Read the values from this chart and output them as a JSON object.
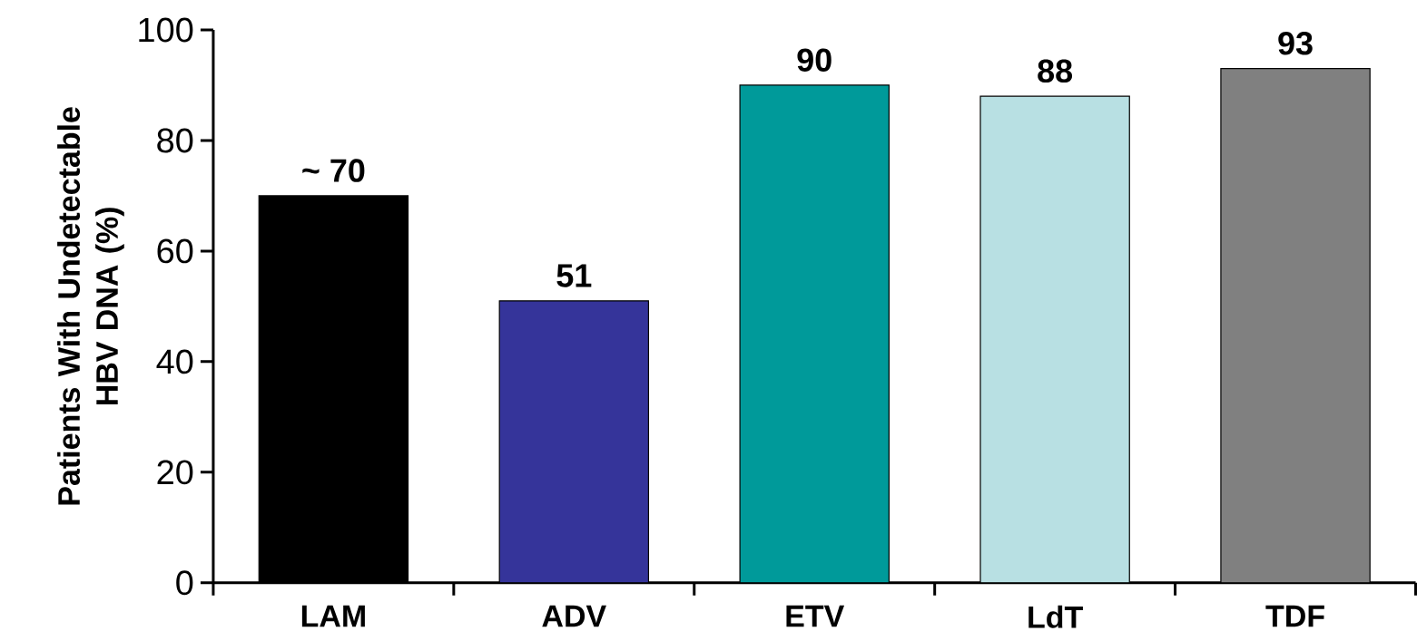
{
  "chart_data": {
    "type": "bar",
    "ylabel": "Patients With Undetectable HBV DNA (%)",
    "categories": [
      "LAM",
      "ADV",
      "ETV",
      "LdT",
      "TDF"
    ],
    "values": [
      70,
      51,
      90,
      88,
      93
    ],
    "value_labels": [
      "~ 70",
      "51",
      "90",
      "88",
      "93"
    ],
    "colors": [
      "#000000",
      "#35349a",
      "#009a9a",
      "#b8e0e3",
      "#808080"
    ],
    "ylim": [
      0,
      100
    ],
    "yticks": [
      0,
      20,
      40,
      60,
      80,
      100
    ]
  }
}
